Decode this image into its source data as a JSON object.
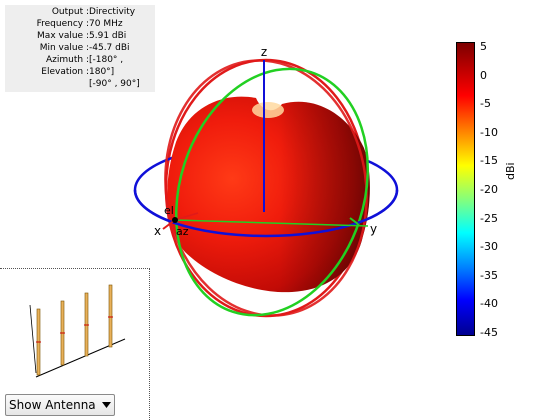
{
  "info": {
    "rows": [
      {
        "label": "Output :",
        "value": "Directivity"
      },
      {
        "label": "Frequency :",
        "value": "70 MHz"
      },
      {
        "label": "Max value :",
        "value": "5.91 dBi"
      },
      {
        "label": "Min value :",
        "value": "-45.7 dBi"
      },
      {
        "label": "Azimuth :",
        "value": "[-180° ,"
      },
      {
        "label": "Elevation :",
        "value": "180°]"
      },
      {
        "label": "",
        "value": "[-90° , 90°]"
      }
    ]
  },
  "axes": {
    "z_label": "z",
    "x_label": "x",
    "y_label": "y",
    "el_label": "el",
    "az_label": "az"
  },
  "colorbar": {
    "unit": "dBi",
    "ticks": [
      "5",
      "0",
      "-5",
      "-10",
      "-15",
      "-20",
      "-25",
      "-30",
      "-35",
      "-40",
      "-45"
    ],
    "colors": {
      "top": "#7d0000",
      "bottom": "#00008f"
    }
  },
  "antenna_select": {
    "value": "Show Antenna"
  }
}
